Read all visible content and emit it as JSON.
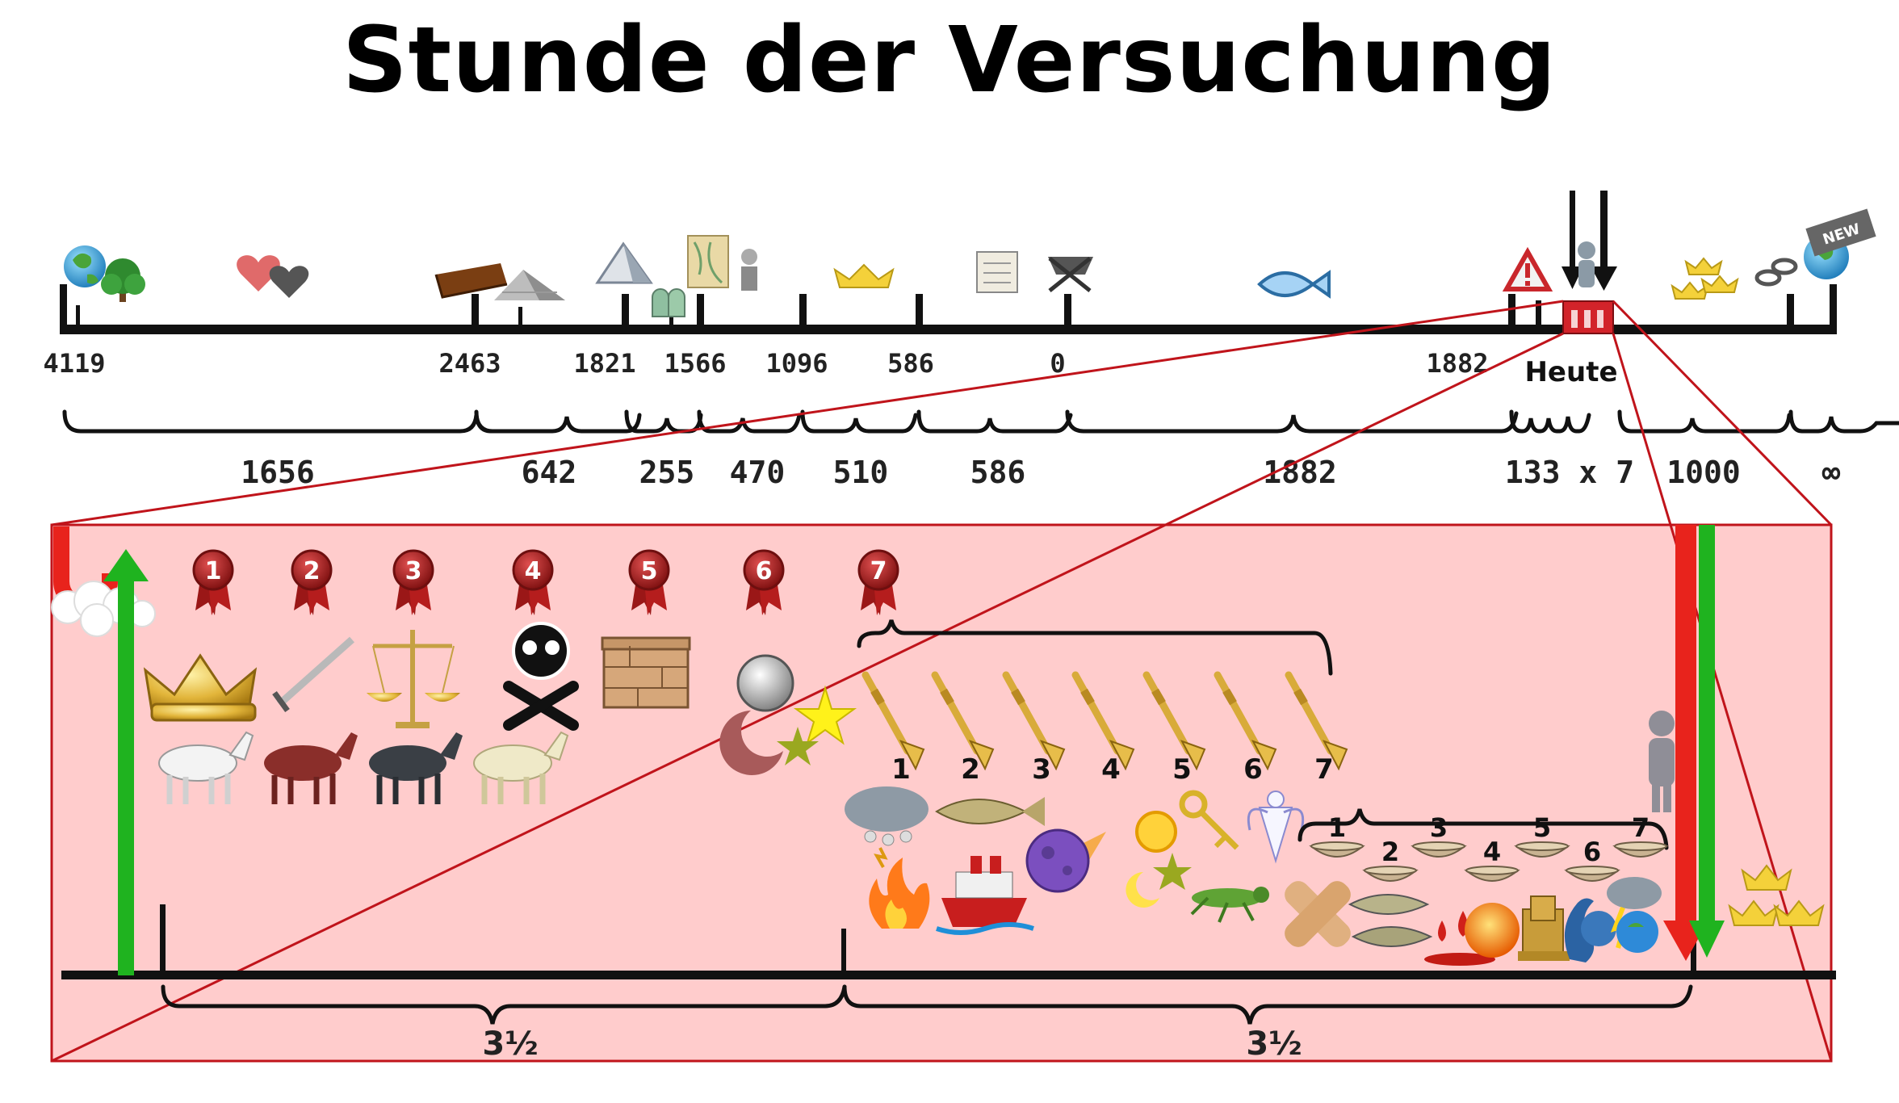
{
  "title": "Stunde der Versuchung",
  "top_timeline": {
    "years": [
      "4119",
      "2463",
      "1821",
      "1566",
      "1096",
      "586",
      "0",
      "1882"
    ],
    "today_label": "Heute",
    "spans": [
      "1656",
      "642",
      "255",
      "470",
      "510",
      "586",
      "1882",
      "133 x 7",
      "1000",
      "∞"
    ],
    "icons": [
      "globe-icon",
      "tree-icon",
      "hearts-icon",
      "ark-icon",
      "pyramid-icon",
      "tablets-icon",
      "map-icon",
      "crown-icon",
      "scroll-icon",
      "manger-icon",
      "fish-icon",
      "warning-icon",
      "person-icon",
      "crowns-icon",
      "chain-icon",
      "new-earth-icon"
    ],
    "new_badge": "NEW"
  },
  "detail": {
    "seals": [
      "1",
      "2",
      "3",
      "4",
      "5",
      "6",
      "7"
    ],
    "trumpets": [
      "1",
      "2",
      "3",
      "4",
      "5",
      "6",
      "7"
    ],
    "bowls": [
      "1",
      "2",
      "3",
      "4",
      "5",
      "6",
      "7"
    ],
    "half_periods": [
      "3½",
      "3½"
    ],
    "colors": {
      "panel": "#ffcccc",
      "frame": "#c0141b",
      "up_arrow": "#1fb31f",
      "down_arrow": "#e8231c"
    }
  }
}
